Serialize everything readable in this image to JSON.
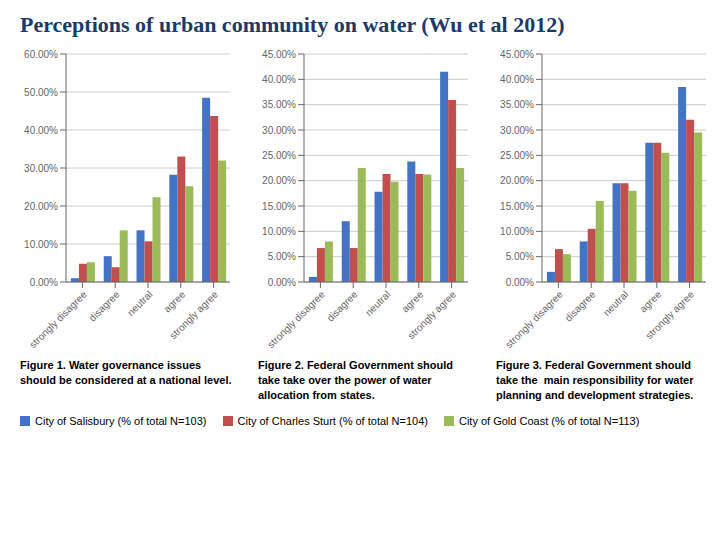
{
  "title": "Perceptions of urban community on water (Wu et al 2012)",
  "chart_data": [
    {
      "type": "bar",
      "title": "Figure 1. Water governance issues should be considered at a national level.",
      "categories": [
        "strongly disagree",
        "disagree",
        "neutral",
        "agree",
        "strongly agree"
      ],
      "series": [
        {
          "name": "City of Salisbury (% of total N=103)",
          "color": "#4472C4",
          "values": [
            1.0,
            6.8,
            13.6,
            28.2,
            48.5
          ]
        },
        {
          "name": "City of Charles Sturt (% of total N=104)",
          "color": "#C0504D",
          "values": [
            4.8,
            3.9,
            10.7,
            33.0,
            43.7
          ]
        },
        {
          "name": "City of Gold Coast (% of total N=113)",
          "color": "#9BBB59",
          "values": [
            5.2,
            13.6,
            22.3,
            25.2,
            32.0
          ]
        }
      ],
      "ylim": [
        0,
        60
      ],
      "yticks": [
        {
          "value": 0,
          "label": "0.00%"
        },
        {
          "value": 10,
          "label": "10.00%"
        },
        {
          "value": 20,
          "label": "20.00%"
        },
        {
          "value": 30,
          "label": "30.00%"
        },
        {
          "value": 40,
          "label": "40.00%"
        },
        {
          "value": 50,
          "label": "50.00%"
        },
        {
          "value": 60,
          "label": "60.00%"
        }
      ],
      "grid": true
    },
    {
      "type": "bar",
      "title": "Figure 2. Federal Government should take take over the power of water allocation from states.",
      "categories": [
        "strongly disagree",
        "disagree",
        "neutral",
        "agree",
        "strongly agree"
      ],
      "series": [
        {
          "name": "City of Salisbury (% of total N=103)",
          "color": "#4472C4",
          "values": [
            1.0,
            12.0,
            17.8,
            23.8,
            41.5
          ]
        },
        {
          "name": "City of Charles Sturt (% of total N=104)",
          "color": "#C0504D",
          "values": [
            6.7,
            6.7,
            21.3,
            21.3,
            35.9
          ]
        },
        {
          "name": "City of Gold Coast (% of total N=113)",
          "color": "#9BBB59",
          "values": [
            8.0,
            22.5,
            19.8,
            21.2,
            22.5
          ]
        }
      ],
      "ylim": [
        0,
        45
      ],
      "yticks": [
        {
          "value": 0,
          "label": "0.00%"
        },
        {
          "value": 5,
          "label": "5.00%"
        },
        {
          "value": 10,
          "label": "10.00%"
        },
        {
          "value": 15,
          "label": "15.00%"
        },
        {
          "value": 20,
          "label": "20.00%"
        },
        {
          "value": 25,
          "label": "25.00%"
        },
        {
          "value": 30,
          "label": "30.00%"
        },
        {
          "value": 35,
          "label": "35.00%"
        },
        {
          "value": 40,
          "label": "40.00%"
        },
        {
          "value": 45,
          "label": "45.00%"
        }
      ],
      "grid": true
    },
    {
      "type": "bar",
      "title": "Figure 3. Federal Government should take the  main responsibility for water planning and development strategies.",
      "categories": [
        "strongly disagree",
        "disagree",
        "neutral",
        "agree",
        "strongly agree"
      ],
      "series": [
        {
          "name": "City of Salisbury (% of total N=103)",
          "color": "#4472C4",
          "values": [
            2.0,
            8.0,
            19.5,
            27.5,
            38.5
          ]
        },
        {
          "name": "City of Charles Sturt (% of total N=104)",
          "color": "#C0504D",
          "values": [
            6.5,
            10.5,
            19.5,
            27.5,
            32.0
          ]
        },
        {
          "name": "City of Gold Coast (% of total N=113)",
          "color": "#9BBB59",
          "values": [
            5.5,
            16.0,
            18.0,
            25.5,
            29.5
          ]
        }
      ],
      "ylim": [
        0,
        45
      ],
      "yticks": [
        {
          "value": 0,
          "label": "0.00%"
        },
        {
          "value": 5,
          "label": "5.00%"
        },
        {
          "value": 10,
          "label": "10.00%"
        },
        {
          "value": 15,
          "label": "15.00%"
        },
        {
          "value": 20,
          "label": "20.00%"
        },
        {
          "value": 25,
          "label": "25.00%"
        },
        {
          "value": 30,
          "label": "30.00%"
        },
        {
          "value": 35,
          "label": "35.00%"
        },
        {
          "value": 40,
          "label": "40.00%"
        },
        {
          "value": 45,
          "label": "45.00%"
        }
      ],
      "grid": true
    }
  ]
}
